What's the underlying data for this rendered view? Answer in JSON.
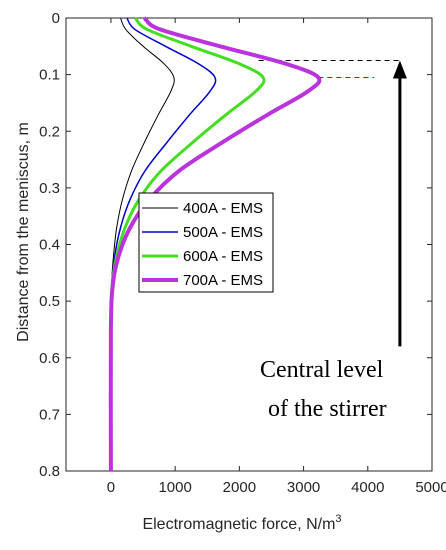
{
  "chart_data": {
    "type": "line",
    "xlabel": "Electromagnetic force, N/m",
    "xlabel_superscript": "3",
    "ylabel": "Distance from the meniscus, m",
    "xlim": [
      -700,
      5000
    ],
    "ylim": [
      0,
      0.8
    ],
    "y_reversed": true,
    "x_ticks": [
      "0",
      "1000",
      "2000",
      "3000",
      "4000",
      "5000"
    ],
    "y_ticks": [
      "0",
      "0.1",
      "0.2",
      "0.3",
      "0.4",
      "0.5",
      "0.6",
      "0.7",
      "0.8"
    ],
    "x_tick_values": [
      0,
      1000,
      2000,
      3000,
      4000,
      5000
    ],
    "y_tick_values": [
      0,
      0.1,
      0.2,
      0.3,
      0.4,
      0.5,
      0.6,
      0.7,
      0.8
    ],
    "grid": false,
    "legend_position": "center",
    "series": [
      {
        "name": "400A - EMS",
        "color": "#000000",
        "width": 1,
        "points": [
          [
            150,
            0
          ],
          [
            230,
            0.02
          ],
          [
            500,
            0.05
          ],
          [
            820,
            0.08
          ],
          [
            980,
            0.105
          ],
          [
            930,
            0.13
          ],
          [
            740,
            0.17
          ],
          [
            520,
            0.22
          ],
          [
            320,
            0.27
          ],
          [
            180,
            0.32
          ],
          [
            90,
            0.37
          ],
          [
            40,
            0.42
          ],
          [
            10,
            0.47
          ],
          [
            0,
            0.55
          ],
          [
            0,
            0.8
          ]
        ]
      },
      {
        "name": "500A - EMS",
        "color": "#0000cc",
        "width": 1.5,
        "points": [
          [
            250,
            0
          ],
          [
            370,
            0.02
          ],
          [
            850,
            0.05
          ],
          [
            1350,
            0.08
          ],
          [
            1620,
            0.105
          ],
          [
            1540,
            0.13
          ],
          [
            1230,
            0.17
          ],
          [
            870,
            0.22
          ],
          [
            530,
            0.27
          ],
          [
            300,
            0.32
          ],
          [
            150,
            0.37
          ],
          [
            60,
            0.42
          ],
          [
            15,
            0.47
          ],
          [
            0,
            0.55
          ],
          [
            0,
            0.8
          ]
        ]
      },
      {
        "name": "600A - EMS",
        "color": "#44dd22",
        "width": 3,
        "points": [
          [
            380,
            0
          ],
          [
            560,
            0.02
          ],
          [
            1250,
            0.05
          ],
          [
            1980,
            0.08
          ],
          [
            2370,
            0.105
          ],
          [
            2250,
            0.13
          ],
          [
            1800,
            0.17
          ],
          [
            1270,
            0.22
          ],
          [
            780,
            0.27
          ],
          [
            440,
            0.32
          ],
          [
            220,
            0.37
          ],
          [
            90,
            0.42
          ],
          [
            20,
            0.47
          ],
          [
            0,
            0.55
          ],
          [
            0,
            0.8
          ]
        ]
      },
      {
        "name": "700A - EMS",
        "color": "#bb33dd",
        "width": 4,
        "points": [
          [
            520,
            0
          ],
          [
            760,
            0.02
          ],
          [
            1700,
            0.05
          ],
          [
            2700,
            0.08
          ],
          [
            3230,
            0.105
          ],
          [
            3060,
            0.13
          ],
          [
            2450,
            0.17
          ],
          [
            1730,
            0.22
          ],
          [
            1060,
            0.27
          ],
          [
            600,
            0.32
          ],
          [
            300,
            0.37
          ],
          [
            120,
            0.42
          ],
          [
            30,
            0.47
          ],
          [
            0,
            0.55
          ],
          [
            0,
            0.8
          ]
        ]
      }
    ],
    "reference_lines": [
      {
        "color": "#000000",
        "y": 0.075,
        "x_from": 2300,
        "x_to": 4500
      },
      {
        "color": "#cc0000",
        "y": 0.105,
        "x_from": 3230,
        "x_to": 4100
      }
    ],
    "annotation": {
      "line1": "Central level",
      "line2": "of the stirrer",
      "arrow_x": 4500,
      "arrow_from_y": 0.58,
      "arrow_to_y": 0.075
    }
  }
}
